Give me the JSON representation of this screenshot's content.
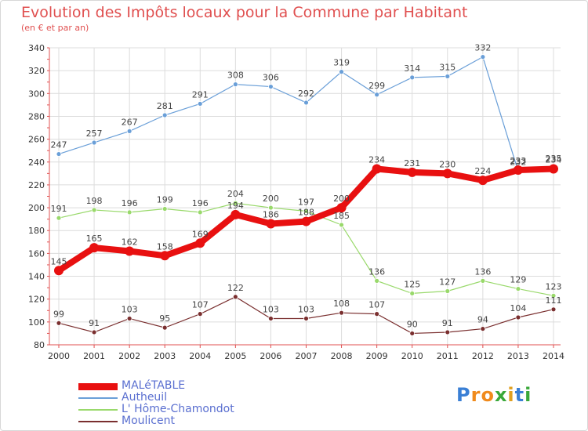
{
  "title": "Evolution des Impôts locaux pour la Commune par Habitant",
  "subtitle": "(en € et par an)",
  "logo": {
    "letters": [
      "P",
      "r",
      "o",
      "x",
      "i",
      "t",
      "i"
    ],
    "colors": [
      "#3a7fd5",
      "#f08a1c",
      "#f08a1c",
      "#3aa83a",
      "#e0a020",
      "#3a7fd5",
      "#3aa83a"
    ]
  },
  "chart_data": {
    "type": "line",
    "categories": [
      "2000",
      "2001",
      "2002",
      "2003",
      "2004",
      "2005",
      "2006",
      "2007",
      "2008",
      "2009",
      "2010",
      "2011",
      "2012",
      "2013",
      "2014"
    ],
    "ylim": [
      80,
      340
    ],
    "yticks": [
      80,
      100,
      120,
      140,
      160,
      180,
      200,
      220,
      240,
      260,
      280,
      300,
      320,
      340
    ],
    "grid": true,
    "legend_position": "bottom-left",
    "series": [
      {
        "name": "MALéTABLE",
        "color": "#e81010",
        "values": [
          145,
          165,
          162,
          158,
          169,
          194,
          186,
          188,
          200,
          234,
          231,
          230,
          224,
          233,
          234
        ],
        "labels": [
          "145",
          "165",
          "162",
          "158",
          "169",
          "194",
          "186",
          "188",
          "200",
          "234",
          "231",
          "230",
          "224",
          "233",
          "234"
        ]
      },
      {
        "name": "Autheuil",
        "color": "#6a9fd8",
        "values": [
          247,
          257,
          267,
          281,
          291,
          308,
          306,
          292,
          319,
          299,
          314,
          315,
          332,
          232,
          235
        ],
        "labels": [
          "247",
          "257",
          "267",
          "281",
          "291",
          "308",
          "306",
          "292",
          "319",
          "299",
          "314",
          "315",
          "332",
          "232",
          "235"
        ]
      },
      {
        "name": "L' Hôme-Chamondot",
        "color": "#99d96b",
        "values": [
          191,
          198,
          196,
          199,
          196,
          204,
          200,
          197,
          185,
          136,
          125,
          127,
          136,
          129,
          123
        ],
        "labels": [
          "191",
          "198",
          "196",
          "199",
          "196",
          "204",
          "200",
          "197",
          "185",
          "136",
          "125",
          "127",
          "136",
          "129",
          "123"
        ]
      },
      {
        "name": "Moulicent",
        "color": "#7a2f2f",
        "values": [
          99,
          91,
          103,
          95,
          107,
          122,
          103,
          103,
          108,
          107,
          90,
          91,
          94,
          104,
          111
        ],
        "labels": [
          "99",
          "91",
          "103",
          "95",
          "107",
          "122",
          "103",
          "103",
          "108",
          "107",
          "90",
          "91",
          "94",
          "104",
          "111"
        ]
      }
    ]
  }
}
